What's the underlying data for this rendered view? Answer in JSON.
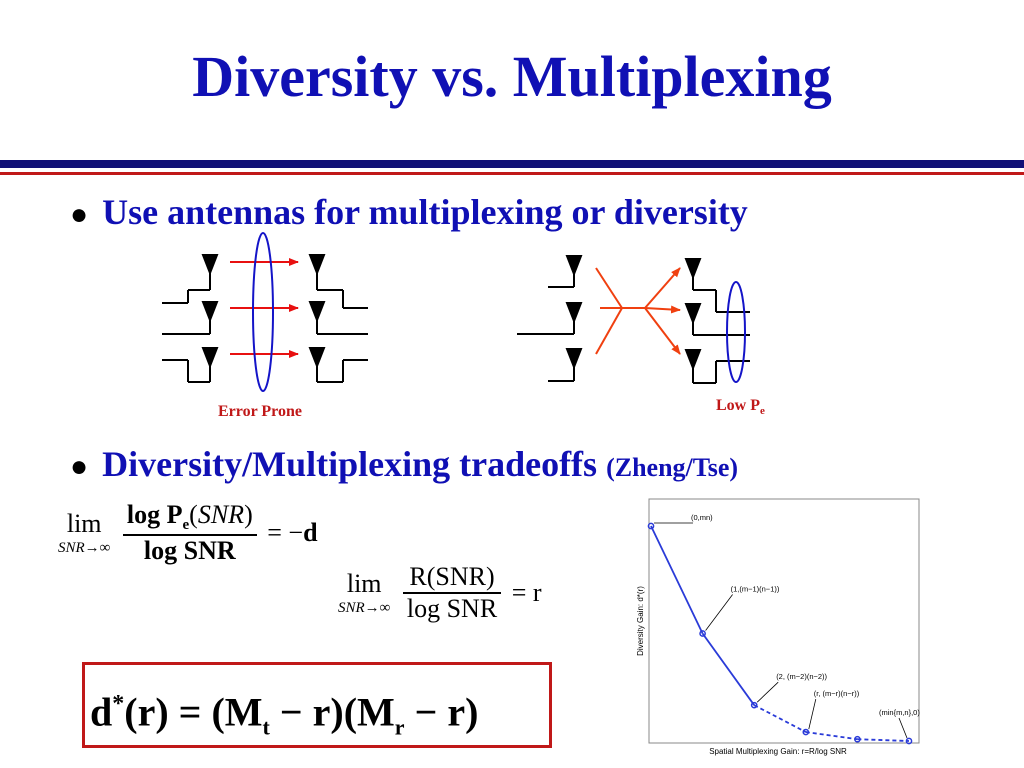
{
  "title": "Diversity vs. Multiplexing",
  "bullet1": "Use antennas for multiplexing or diversity",
  "bullet2": {
    "main": "Diversity/Multiplexing tradeoffs",
    "cite": "(Zheng/Tse)"
  },
  "captions": {
    "left": "Error Prone",
    "right_main": "Low P",
    "right_sub": "e"
  },
  "eq1": {
    "lim": "lim",
    "sub": "SNR→∞",
    "num_a": "log P",
    "num_b": "e",
    "num_c": "(",
    "num_d": "SNR",
    "num_e": ")",
    "den": "log SNR",
    "rhs": "= −",
    "d": "d"
  },
  "eq2": {
    "lim": "lim",
    "sub": "SNR→∞",
    "num": "R(SNR)",
    "den": "log SNR",
    "rhs": "= r"
  },
  "boxed": {
    "d": "d",
    "sup": "*",
    "p1": "(r) = (M",
    "s1": "t",
    "p2": " − r)(M",
    "s2": "r",
    "p3": " − r)"
  },
  "chart_data": {
    "type": "line",
    "xlabel": "Spatial Multiplexing Gain:  r=R/log SNR",
    "ylabel": "Diversity Gain:   d*(r)",
    "points": [
      {
        "label": "(0,mn)",
        "x": 0,
        "y": 12
      },
      {
        "label": "(1,(m−1)(n−1))",
        "x": 1,
        "y": 6
      },
      {
        "label": "(2, (m−2)(n−2))",
        "x": 2,
        "y": 2
      },
      {
        "label": "(r, (m−r)(n−r))",
        "x": 3,
        "y": 0.5
      },
      {
        "label": "",
        "x": 4,
        "y": 0.1
      },
      {
        "label": "(min{m,n},0)",
        "x": 5,
        "y": 0
      }
    ],
    "solid_until_index": 2,
    "colors": {
      "line": "#2a3bd8",
      "axes": "#888888"
    }
  },
  "colors": {
    "title": "#1010b4",
    "accent_red": "#c01818",
    "navy": "#1010b4"
  }
}
